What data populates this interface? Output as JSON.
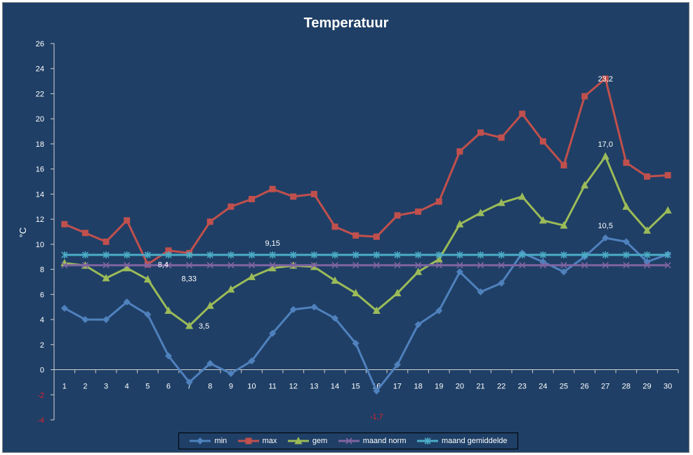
{
  "chart_data": {
    "type": "line",
    "title": "Temperatuur",
    "xlabel": "",
    "ylabel": "°C",
    "ylim": [
      -4,
      26
    ],
    "yticks": [
      -4,
      -2,
      0,
      2,
      4,
      6,
      8,
      10,
      12,
      14,
      16,
      18,
      20,
      22,
      24,
      26
    ],
    "categories": [
      "1",
      "2",
      "3",
      "4",
      "5",
      "6",
      "7",
      "8",
      "9",
      "10",
      "11",
      "12",
      "13",
      "14",
      "15",
      "16",
      "17",
      "18",
      "19",
      "20",
      "21",
      "22",
      "23",
      "24",
      "25",
      "26",
      "27",
      "28",
      "29",
      "30"
    ],
    "grid": false,
    "legend_position": "bottom",
    "series": [
      {
        "name": "min",
        "color": "#4f81bd",
        "marker": "diamond",
        "values": [
          4.9,
          4.0,
          4.0,
          5.4,
          4.4,
          1.1,
          -1.0,
          0.5,
          -0.3,
          0.7,
          2.9,
          4.8,
          5.0,
          4.1,
          2.1,
          -1.7,
          0.4,
          3.6,
          4.7,
          7.8,
          6.2,
          6.9,
          9.3,
          8.6,
          7.8,
          9.0,
          10.5,
          10.2,
          8.6,
          9.2
        ]
      },
      {
        "name": "max",
        "color": "#c0504d",
        "marker": "square",
        "values": [
          11.6,
          10.9,
          10.2,
          11.9,
          8.4,
          9.5,
          9.3,
          11.8,
          13.0,
          13.6,
          14.4,
          13.8,
          14.0,
          11.4,
          10.7,
          10.6,
          12.3,
          12.6,
          13.4,
          17.4,
          18.9,
          18.5,
          20.4,
          18.2,
          16.3,
          21.8,
          23.2,
          16.5,
          15.4,
          15.5
        ]
      },
      {
        "name": "gem",
        "color": "#9bbb59",
        "marker": "triangle",
        "values": [
          8.5,
          8.3,
          7.3,
          8.1,
          7.2,
          4.7,
          3.5,
          5.1,
          6.4,
          7.4,
          8.1,
          8.3,
          8.2,
          7.1,
          6.1,
          4.7,
          6.1,
          7.8,
          8.8,
          11.6,
          12.5,
          13.3,
          13.8,
          11.9,
          11.5,
          14.7,
          17.0,
          13.0,
          11.1,
          12.7
        ]
      },
      {
        "name": "maand norm",
        "color": "#8064a2",
        "marker": "x",
        "values": [
          8.33,
          8.33,
          8.33,
          8.33,
          8.33,
          8.33,
          8.33,
          8.33,
          8.33,
          8.33,
          8.33,
          8.33,
          8.33,
          8.33,
          8.33,
          8.33,
          8.33,
          8.33,
          8.33,
          8.33,
          8.33,
          8.33,
          8.33,
          8.33,
          8.33,
          8.33,
          8.33,
          8.33,
          8.33,
          8.33
        ]
      },
      {
        "name": "maand gemiddelde",
        "color": "#4bacc6",
        "marker": "star",
        "values": [
          9.15,
          9.15,
          9.15,
          9.15,
          9.15,
          9.15,
          9.15,
          9.15,
          9.15,
          9.15,
          9.15,
          9.15,
          9.15,
          9.15,
          9.15,
          9.15,
          9.15,
          9.15,
          9.15,
          9.15,
          9.15,
          9.15,
          9.15,
          9.15,
          9.15,
          9.15,
          9.15,
          9.15,
          9.15,
          9.15
        ]
      }
    ],
    "annotations": [
      {
        "text": "23,2",
        "series": "max",
        "x": "27",
        "y": 23.2
      },
      {
        "text": "17,0",
        "series": "gem",
        "x": "27",
        "y": 17.0
      },
      {
        "text": "10,5",
        "series": "min",
        "x": "27",
        "y": 10.5
      },
      {
        "text": "9,15",
        "series": "maand gemiddelde",
        "x": "11",
        "y": 9.15
      },
      {
        "text": "8,4",
        "series": "max",
        "x": "5",
        "y": 8.4
      },
      {
        "text": "8,33",
        "series": "maand norm",
        "x": "8",
        "y": 8.33
      },
      {
        "text": "3,5",
        "series": "gem",
        "x": "7",
        "y": 3.5
      },
      {
        "text": "-1,7",
        "series": "min",
        "x": "16",
        "y": -1.7
      }
    ]
  }
}
